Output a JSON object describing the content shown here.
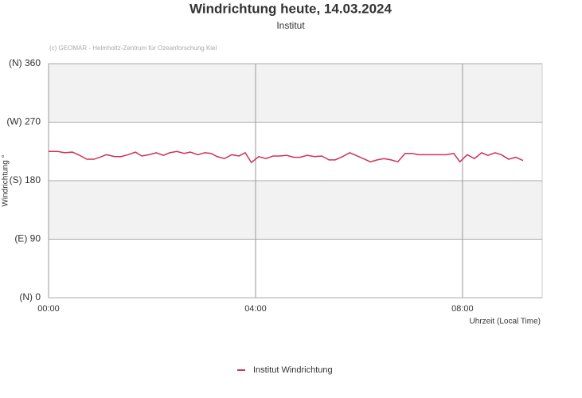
{
  "chart_data": {
    "type": "line",
    "title": "Windrichtung heute, 14.03.2024",
    "subtitle": "Institut",
    "credit": "(c) GEOMAR - Helmholtz-Zentrum für Ozeanforschung Kiel",
    "y_label": "Windrichtung °",
    "x_label": "Uhrzeit (Local Time)",
    "xlim": [
      0,
      9.54
    ],
    "xticks": [
      {
        "value": 0,
        "label": "00:00"
      },
      {
        "value": 4,
        "label": "04:00"
      },
      {
        "value": 8,
        "label": "08:00"
      }
    ],
    "ylim": [
      0,
      360
    ],
    "yticks": [
      {
        "value": 0,
        "label": "(N) 0"
      },
      {
        "value": 90,
        "label": "(E) 90"
      },
      {
        "value": 180,
        "label": "(S) 180"
      },
      {
        "value": 270,
        "label": "(W) 270"
      },
      {
        "value": 360,
        "label": "(N) 360"
      }
    ],
    "grid": true,
    "series": [
      {
        "name": "Institut Windrichtung",
        "color": "#cc3355",
        "x": [
          0,
          0.18,
          0.31,
          0.46,
          0.6,
          0.74,
          0.88,
          1.02,
          1.12,
          1.28,
          1.4,
          1.54,
          1.68,
          1.8,
          1.94,
          2.08,
          2.22,
          2.34,
          2.48,
          2.62,
          2.74,
          2.88,
          3.02,
          3.14,
          3.26,
          3.4,
          3.54,
          3.68,
          3.8,
          3.92,
          4.06,
          4.2,
          4.34,
          4.46,
          4.6,
          4.74,
          4.86,
          5.0,
          5.14,
          5.28,
          5.42,
          5.54,
          5.68,
          5.82,
          5.94,
          6.08,
          6.22,
          6.35,
          6.48,
          6.62,
          6.75,
          6.89,
          7.02,
          7.15,
          7.29,
          7.43,
          7.55,
          7.69,
          7.83,
          7.95,
          8.09,
          8.23,
          8.37,
          8.49,
          8.63,
          8.75,
          8.89,
          9.03,
          9.17
        ],
        "values": [
          225,
          225,
          223,
          224,
          219,
          213,
          213,
          217,
          220,
          217,
          217,
          220,
          224,
          218,
          220,
          223,
          219,
          223,
          225,
          222,
          224,
          220,
          223,
          222,
          217,
          214,
          220,
          218,
          223,
          208,
          217,
          214,
          218,
          218,
          219,
          216,
          216,
          219,
          217,
          218,
          212,
          212,
          217,
          223,
          219,
          214,
          209,
          212,
          214,
          212,
          209,
          222,
          222,
          220,
          220,
          220,
          220,
          220,
          222,
          209,
          220,
          214,
          223,
          219,
          223,
          220,
          213,
          216,
          211
        ]
      }
    ],
    "legend": "bottom"
  }
}
